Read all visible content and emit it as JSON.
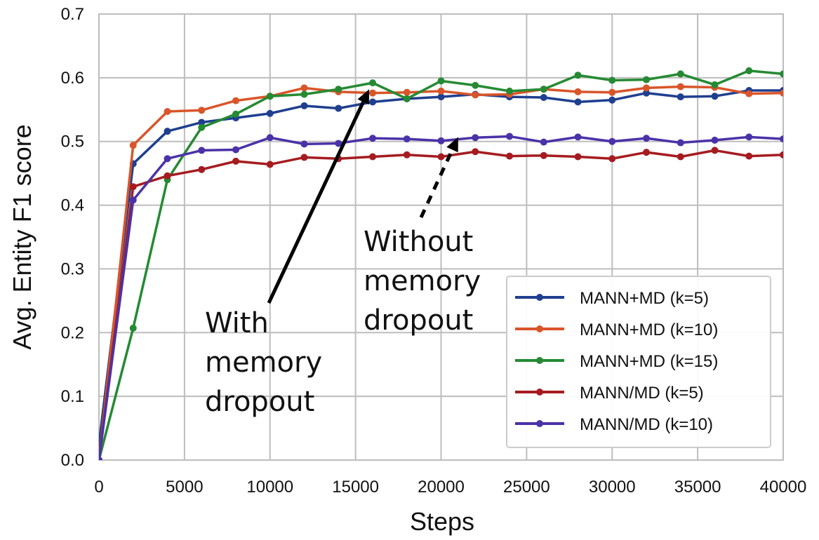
{
  "chart_data": {
    "type": "line",
    "xlabel": "Steps",
    "ylabel": "Avg. Entity F1 score",
    "xlim": [
      0,
      40000
    ],
    "ylim": [
      0,
      0.7
    ],
    "xticks": [
      0,
      5000,
      10000,
      15000,
      20000,
      25000,
      30000,
      35000,
      40000
    ],
    "xtick_labels": [
      "0",
      "5000",
      "10000",
      "15000",
      "20000",
      "25000",
      "30000",
      "35000",
      "40000"
    ],
    "yticks": [
      0.0,
      0.1,
      0.2,
      0.3,
      0.4,
      0.5,
      0.6,
      0.7
    ],
    "ytick_labels": [
      "0.0",
      "0.1",
      "0.2",
      "0.3",
      "0.4",
      "0.5",
      "0.6",
      "0.7"
    ],
    "grid": true,
    "legend_position": "lower-right",
    "x": [
      0,
      2000,
      4000,
      6000,
      8000,
      10000,
      12000,
      14000,
      16000,
      18000,
      20000,
      22000,
      24000,
      26000,
      28000,
      30000,
      32000,
      34000,
      36000,
      38000,
      40000
    ],
    "series": [
      {
        "name": "MANN+MD (k=5)",
        "color": "#1f3f8f",
        "values": [
          0.025,
          0.465,
          0.516,
          0.53,
          0.537,
          0.544,
          0.556,
          0.552,
          0.562,
          0.567,
          0.57,
          0.574,
          0.57,
          0.569,
          0.562,
          0.565,
          0.576,
          0.57,
          0.571,
          0.58,
          0.58
        ]
      },
      {
        "name": "MANN+MD (k=10)",
        "color": "#d9552a",
        "values": [
          0.0,
          0.494,
          0.547,
          0.549,
          0.564,
          0.571,
          0.584,
          0.578,
          0.576,
          0.577,
          0.579,
          0.573,
          0.574,
          0.582,
          0.578,
          0.577,
          0.584,
          0.586,
          0.585,
          0.575,
          0.576
        ]
      },
      {
        "name": "MANN+MD (k=15)",
        "color": "#258a33",
        "values": [
          0.0,
          0.207,
          0.44,
          0.522,
          0.543,
          0.571,
          0.574,
          0.582,
          0.592,
          0.567,
          0.595,
          0.588,
          0.579,
          0.582,
          0.604,
          0.596,
          0.597,
          0.606,
          0.589,
          0.611,
          0.606
        ]
      },
      {
        "name": "MANN/MD (k=5)",
        "color": "#a51c20",
        "values": [
          0.0,
          0.429,
          0.446,
          0.456,
          0.469,
          0.464,
          0.475,
          0.473,
          0.476,
          0.479,
          0.476,
          0.484,
          0.477,
          0.478,
          0.476,
          0.473,
          0.483,
          0.476,
          0.486,
          0.477,
          0.479
        ]
      },
      {
        "name": "MANN/MD (k=10)",
        "color": "#4b32a8",
        "values": [
          0.0,
          0.408,
          0.473,
          0.486,
          0.487,
          0.506,
          0.496,
          0.497,
          0.505,
          0.504,
          0.501,
          0.506,
          0.508,
          0.499,
          0.507,
          0.5,
          0.505,
          0.498,
          0.502,
          0.507,
          0.504
        ]
      }
    ],
    "annotations": [
      {
        "id": "with",
        "lines": [
          "With",
          "memory",
          "dropout"
        ],
        "arrow_style": "solid",
        "arrow_to": [
          15800,
          0.582
        ]
      },
      {
        "id": "without",
        "lines": [
          "Without",
          "memory",
          "dropout"
        ],
        "arrow_style": "dashed",
        "arrow_to": [
          21000,
          0.507
        ]
      }
    ]
  }
}
